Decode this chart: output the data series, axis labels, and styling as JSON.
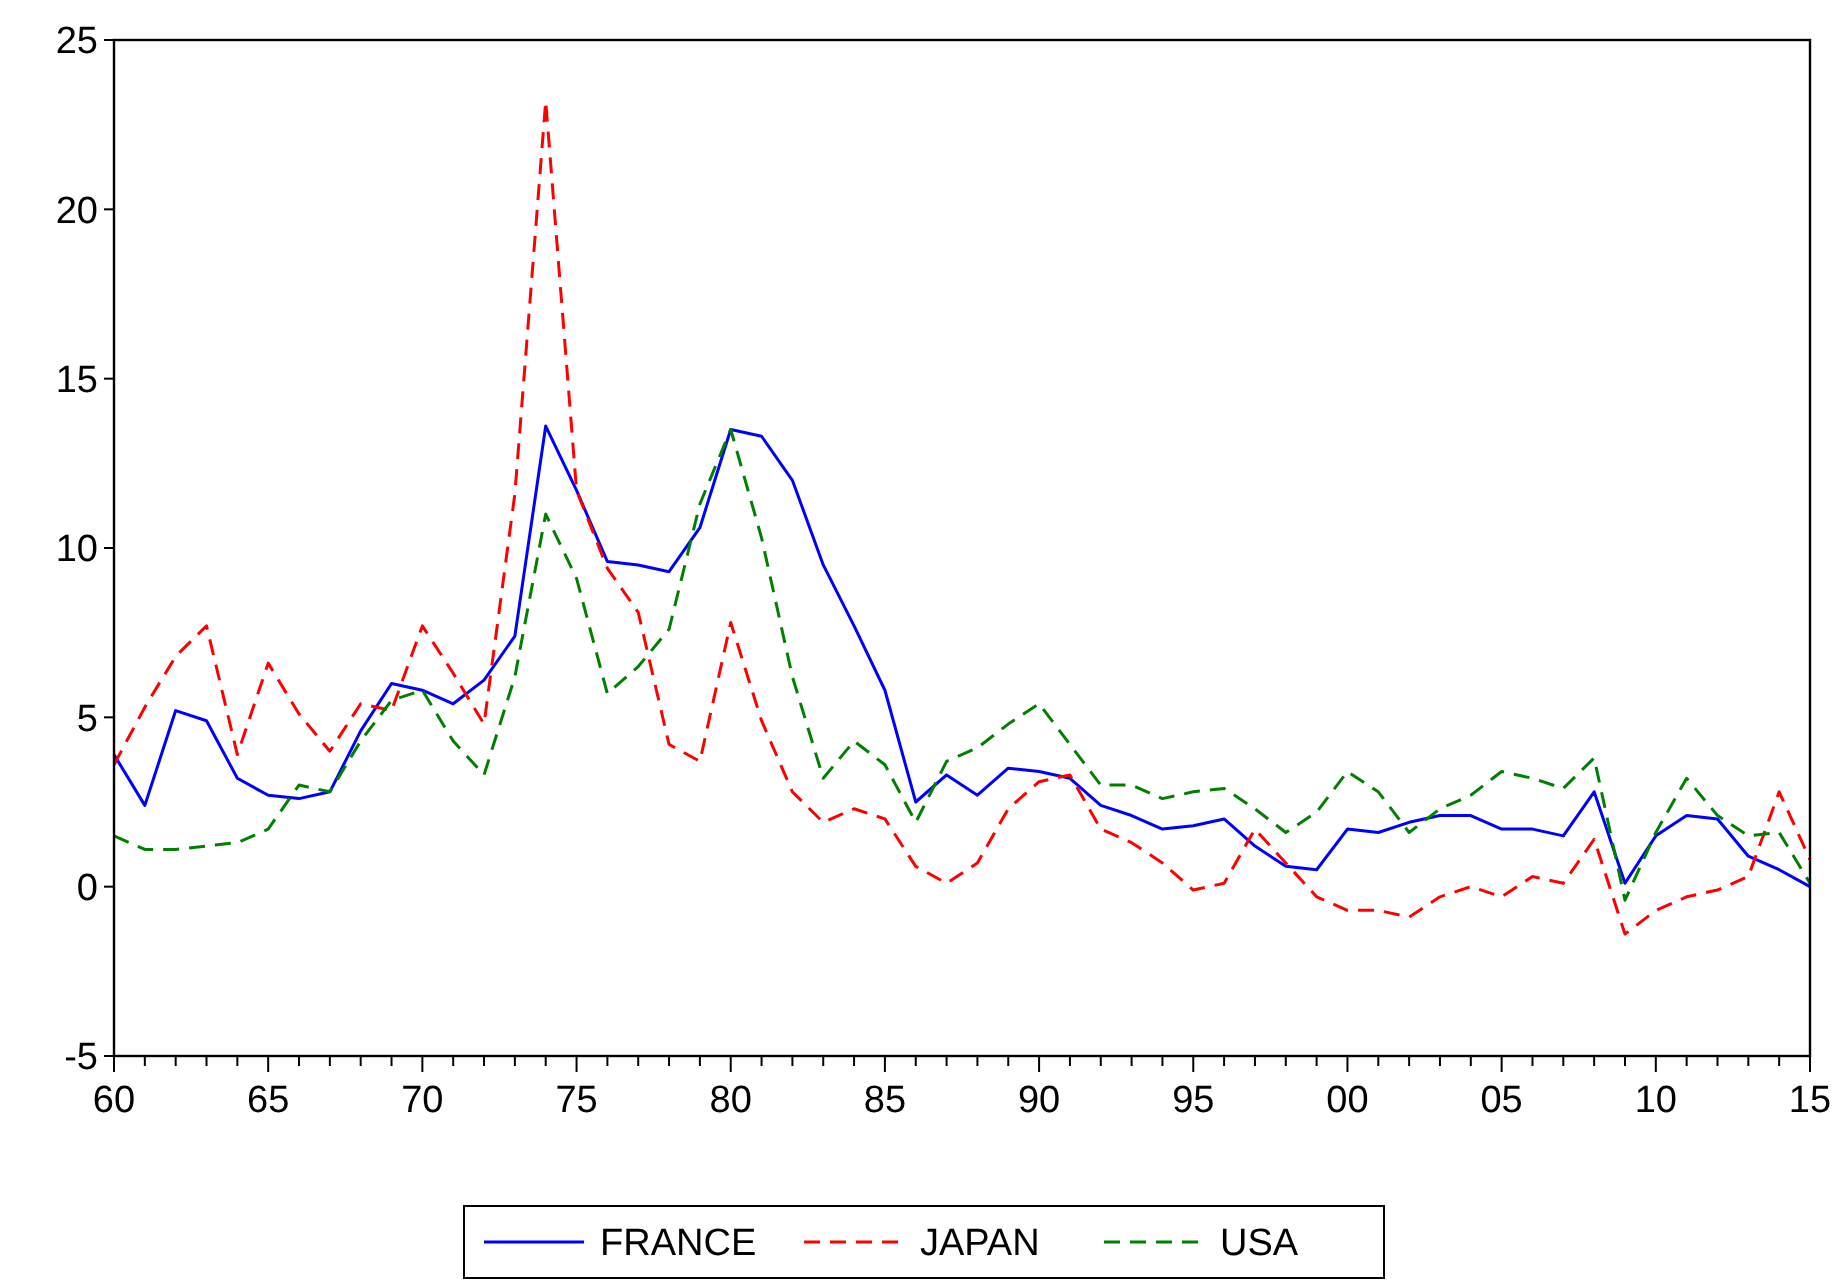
{
  "chart_data": {
    "type": "line",
    "x": [
      1960,
      1961,
      1962,
      1963,
      1964,
      1965,
      1966,
      1967,
      1968,
      1969,
      1970,
      1971,
      1972,
      1973,
      1974,
      1975,
      1976,
      1977,
      1978,
      1979,
      1980,
      1981,
      1982,
      1983,
      1984,
      1985,
      1986,
      1987,
      1988,
      1989,
      1990,
      1991,
      1992,
      1993,
      1994,
      1995,
      1996,
      1997,
      1998,
      1999,
      2000,
      2001,
      2002,
      2003,
      2004,
      2005,
      2006,
      2007,
      2008,
      2009,
      2010,
      2011,
      2012,
      2013,
      2014,
      2015
    ],
    "series": [
      {
        "name": "FRANCE",
        "color": "#0000ff",
        "line_style": "solid",
        "values": [
          3.9,
          2.4,
          5.2,
          4.9,
          3.2,
          2.7,
          2.6,
          2.8,
          4.6,
          6.0,
          5.8,
          5.4,
          6.1,
          7.4,
          13.6,
          11.7,
          9.6,
          9.5,
          9.3,
          10.6,
          13.5,
          13.3,
          12.0,
          9.5,
          7.7,
          5.8,
          2.5,
          3.3,
          2.7,
          3.5,
          3.4,
          3.2,
          2.4,
          2.1,
          1.7,
          1.8,
          2.0,
          1.2,
          0.6,
          0.5,
          1.7,
          1.6,
          1.9,
          2.1,
          2.1,
          1.7,
          1.7,
          1.5,
          2.8,
          0.1,
          1.5,
          2.1,
          2.0,
          0.9,
          0.5,
          0.0
        ]
      },
      {
        "name": "JAPAN",
        "color": "#ff0000",
        "line_style": "dashed",
        "values": [
          3.6,
          5.3,
          6.8,
          7.7,
          3.9,
          6.6,
          5.1,
          4.0,
          5.4,
          5.2,
          7.7,
          6.3,
          4.8,
          11.6,
          23.2,
          11.7,
          9.4,
          8.1,
          4.2,
          3.7,
          7.8,
          4.9,
          2.8,
          1.9,
          2.3,
          2.0,
          0.6,
          0.1,
          0.7,
          2.3,
          3.1,
          3.3,
          1.7,
          1.3,
          0.7,
          -0.1,
          0.1,
          1.7,
          0.7,
          -0.3,
          -0.7,
          -0.7,
          -0.9,
          -0.3,
          0.0,
          -0.3,
          0.3,
          0.1,
          1.4,
          -1.4,
          -0.7,
          -0.3,
          -0.1,
          0.3,
          2.8,
          0.8
        ]
      },
      {
        "name": "USA",
        "color": "#008000",
        "line_style": "dashed",
        "values": [
          1.5,
          1.1,
          1.1,
          1.2,
          1.3,
          1.7,
          3.0,
          2.8,
          4.3,
          5.5,
          5.8,
          4.3,
          3.3,
          6.2,
          11.0,
          9.1,
          5.7,
          6.5,
          7.6,
          11.3,
          13.5,
          10.3,
          6.2,
          3.2,
          4.3,
          3.6,
          1.9,
          3.7,
          4.1,
          4.8,
          5.4,
          4.2,
          3.0,
          3.0,
          2.6,
          2.8,
          2.9,
          2.3,
          1.6,
          2.2,
          3.4,
          2.8,
          1.6,
          2.3,
          2.7,
          3.4,
          3.2,
          2.9,
          3.8,
          -0.4,
          1.6,
          3.2,
          2.1,
          1.5,
          1.6,
          0.1
        ]
      }
    ],
    "xlim": [
      1960,
      2015
    ],
    "xticks": [
      {
        "value": 1960,
        "label": "60"
      },
      {
        "value": 1961,
        "label": null
      },
      {
        "value": 1962,
        "label": null
      },
      {
        "value": 1963,
        "label": null
      },
      {
        "value": 1964,
        "label": null
      },
      {
        "value": 1965,
        "label": "65"
      },
      {
        "value": 1966,
        "label": null
      },
      {
        "value": 1967,
        "label": null
      },
      {
        "value": 1968,
        "label": null
      },
      {
        "value": 1969,
        "label": null
      },
      {
        "value": 1970,
        "label": "70"
      },
      {
        "value": 1971,
        "label": null
      },
      {
        "value": 1972,
        "label": null
      },
      {
        "value": 1973,
        "label": null
      },
      {
        "value": 1974,
        "label": null
      },
      {
        "value": 1975,
        "label": "75"
      },
      {
        "value": 1976,
        "label": null
      },
      {
        "value": 1977,
        "label": null
      },
      {
        "value": 1978,
        "label": null
      },
      {
        "value": 1979,
        "label": null
      },
      {
        "value": 1980,
        "label": "80"
      },
      {
        "value": 1981,
        "label": null
      },
      {
        "value": 1982,
        "label": null
      },
      {
        "value": 1983,
        "label": null
      },
      {
        "value": 1984,
        "label": null
      },
      {
        "value": 1985,
        "label": "85"
      },
      {
        "value": 1986,
        "label": null
      },
      {
        "value": 1987,
        "label": null
      },
      {
        "value": 1988,
        "label": null
      },
      {
        "value": 1989,
        "label": null
      },
      {
        "value": 1990,
        "label": "90"
      },
      {
        "value": 1991,
        "label": null
      },
      {
        "value": 1992,
        "label": null
      },
      {
        "value": 1993,
        "label": null
      },
      {
        "value": 1994,
        "label": null
      },
      {
        "value": 1995,
        "label": "95"
      },
      {
        "value": 1996,
        "label": null
      },
      {
        "value": 1997,
        "label": null
      },
      {
        "value": 1998,
        "label": null
      },
      {
        "value": 1999,
        "label": null
      },
      {
        "value": 2000,
        "label": "00"
      },
      {
        "value": 2001,
        "label": null
      },
      {
        "value": 2002,
        "label": null
      },
      {
        "value": 2003,
        "label": null
      },
      {
        "value": 2004,
        "label": null
      },
      {
        "value": 2005,
        "label": "05"
      },
      {
        "value": 2006,
        "label": null
      },
      {
        "value": 2007,
        "label": null
      },
      {
        "value": 2008,
        "label": null
      },
      {
        "value": 2009,
        "label": null
      },
      {
        "value": 2010,
        "label": "10"
      },
      {
        "value": 2011,
        "label": null
      },
      {
        "value": 2012,
        "label": null
      },
      {
        "value": 2013,
        "label": null
      },
      {
        "value": 2014,
        "label": null
      },
      {
        "value": 2015,
        "label": "15"
      }
    ],
    "ylim": [
      -5,
      25
    ],
    "yticks": [
      -5,
      0,
      5,
      10,
      15,
      20,
      25
    ],
    "grid": false,
    "legend": "bottom",
    "marker": "none"
  }
}
